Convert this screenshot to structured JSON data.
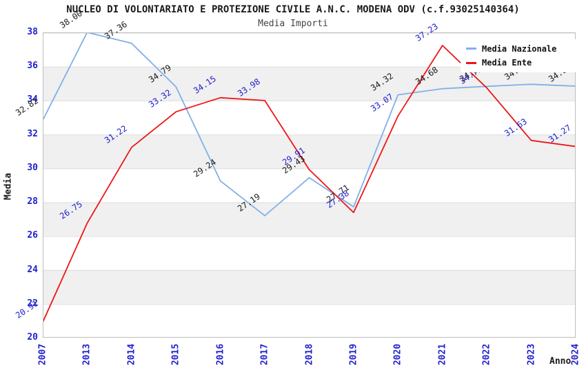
{
  "chart_data": {
    "type": "line",
    "title": "NUCLEO DI VOLONTARIATO E PROTEZIONE CIVILE A.N.C. MODENA ODV (c.f.93025140364)",
    "subtitle": "Media Importi",
    "xlabel": "Anno",
    "ylabel": "Media",
    "categories": [
      "2007",
      "2013",
      "2014",
      "2015",
      "2016",
      "2017",
      "2018",
      "2019",
      "2020",
      "2021",
      "2022",
      "2023",
      "2024"
    ],
    "series": [
      {
        "name": "Media Nazionale",
        "color": "#7fb0e8",
        "label_color": "#1a1a1a",
        "values": [
          32.82,
          38.0,
          37.36,
          34.79,
          29.24,
          27.19,
          29.43,
          27.71,
          34.32,
          34.68,
          34.82,
          34.94,
          34.83
        ]
      },
      {
        "name": "Media Ente",
        "color": "#ee1515",
        "label_color": "#2020cf",
        "values": [
          20.91,
          26.75,
          31.22,
          33.32,
          34.15,
          33.98,
          29.91,
          27.38,
          33.07,
          37.23,
          34.72,
          31.63,
          31.27
        ]
      }
    ],
    "ylim": [
      20,
      38
    ],
    "yticks": [
      38,
      36,
      34,
      32,
      30,
      28,
      26,
      24,
      22,
      20
    ],
    "grid": "horizontal-bands-alternating",
    "legend_position": "top-right",
    "colors": {
      "axis_text": "#2020cf",
      "band_gray": "#f0f0f0",
      "plot_border": "#bdbdbd",
      "gridline": "#dedede",
      "title_text": "#1a1a1a"
    }
  }
}
